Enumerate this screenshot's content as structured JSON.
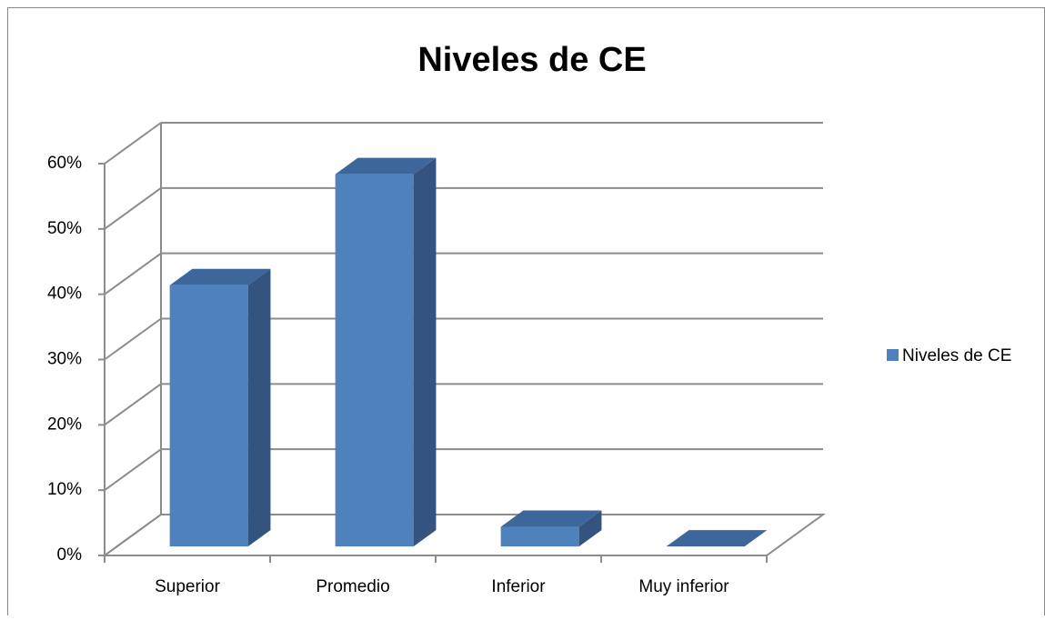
{
  "chart_data": {
    "type": "bar3d",
    "title": "Niveles de CE",
    "categories": [
      "Superior",
      "Promedio",
      "Inferior",
      "Muy inferior"
    ],
    "series": [
      {
        "name": "Niveles de CE",
        "color": "#4f81bd",
        "values": [
          40,
          57,
          3,
          0
        ]
      }
    ],
    "ylim": [
      0,
      60
    ],
    "yticks": [
      {
        "value": 0,
        "label": "0%"
      },
      {
        "value": 10,
        "label": "10%"
      },
      {
        "value": 20,
        "label": "20%"
      },
      {
        "value": 30,
        "label": "30%"
      },
      {
        "value": 40,
        "label": "40%"
      },
      {
        "value": 50,
        "label": "50%"
      },
      {
        "value": 60,
        "label": "60%"
      }
    ],
    "grid": true,
    "legend": "right"
  }
}
